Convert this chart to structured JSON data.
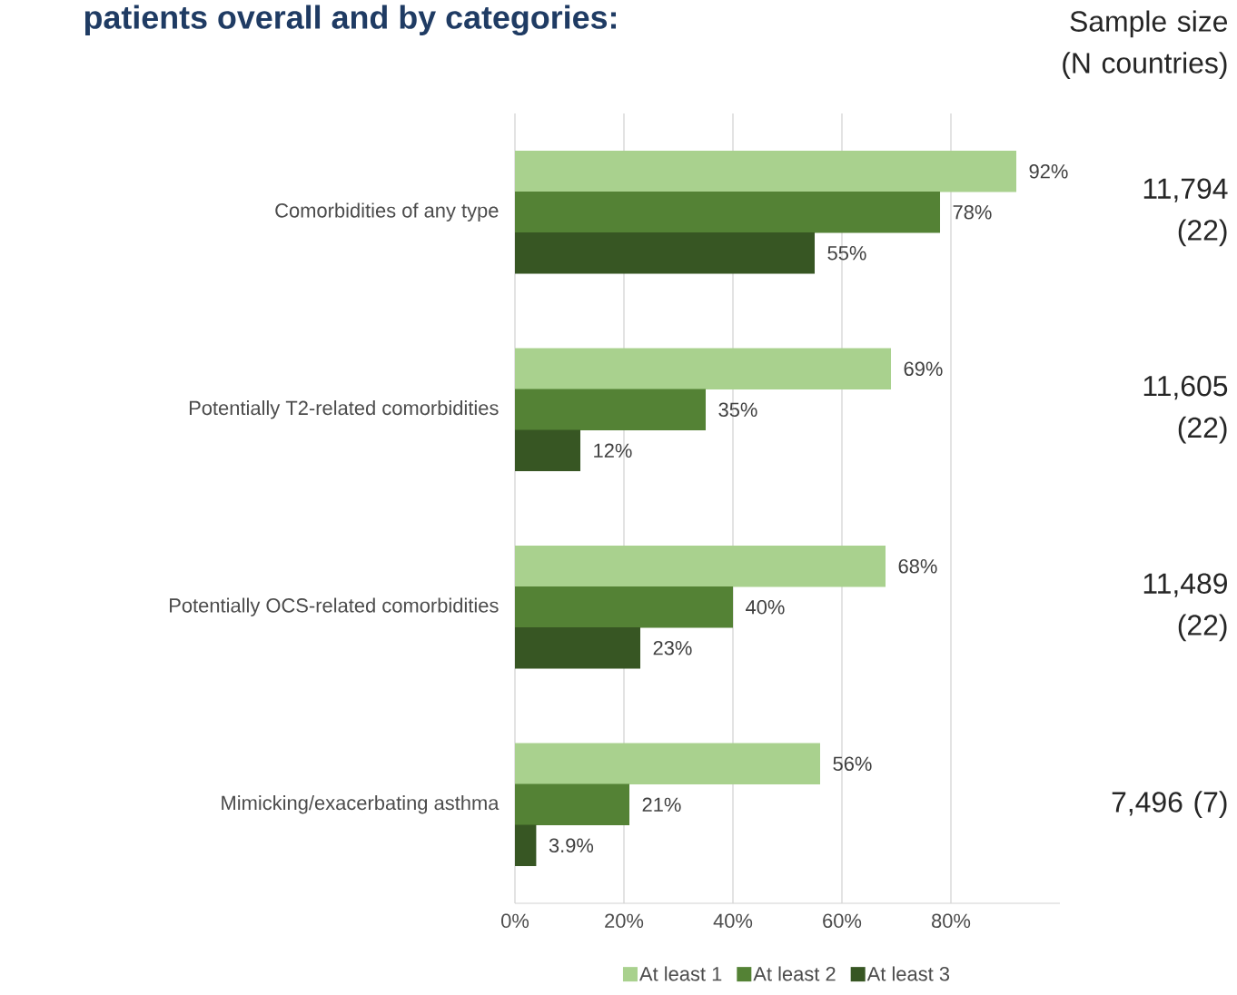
{
  "chart_data": {
    "type": "bar",
    "orientation": "horizontal",
    "title": "patients overall and by categories:",
    "categories": [
      "Comorbidities of any type",
      "Potentially T2-related comorbidities",
      "Potentially OCS-related comorbidities",
      "Mimicking/exacerbating asthma"
    ],
    "series": [
      {
        "name": "At least 1",
        "color": "#a9d18e",
        "values": [
          92,
          69,
          68,
          56
        ],
        "value_labels": [
          "92%",
          "69%",
          "68%",
          "56%"
        ]
      },
      {
        "name": "At least 2",
        "color": "#548235",
        "values": [
          78,
          35,
          40,
          21
        ],
        "value_labels": [
          "78%",
          "35%",
          "40%",
          "21%"
        ]
      },
      {
        "name": "At least 3",
        "color": "#375623",
        "values": [
          55,
          12,
          23,
          3.9
        ],
        "value_labels": [
          "55%",
          "12%",
          "23%",
          "3.9%"
        ]
      }
    ],
    "xticks": [
      {
        "value": 0,
        "label": "0%"
      },
      {
        "value": 20,
        "label": "20%"
      },
      {
        "value": 40,
        "label": "40%"
      },
      {
        "value": 60,
        "label": "60%"
      },
      {
        "value": 80,
        "label": "80%"
      }
    ],
    "xlim": [
      0,
      100
    ],
    "grid": "x",
    "legend": "bottom",
    "annotations": [
      "Sample size (N countries)",
      "11,794 (22)",
      "11,605 (22)",
      "11,489 (22)",
      "7,496 (7)"
    ]
  }
}
